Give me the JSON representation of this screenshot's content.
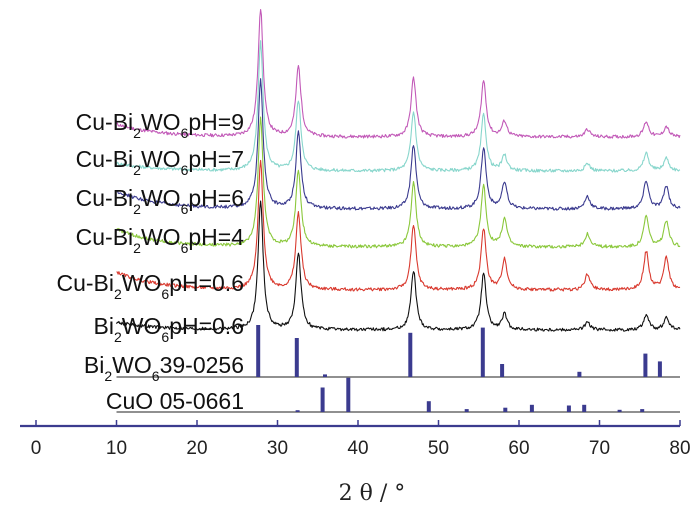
{
  "chart_data": {
    "type": "line",
    "xlabel": "2 θ / °",
    "ylabel": "",
    "xlim": [
      0,
      80
    ],
    "xticks": [
      0,
      10,
      20,
      30,
      40,
      50,
      60,
      70,
      80
    ],
    "axis_color": "#3b3b8f",
    "series": [
      {
        "label": {
          "a": "Cu-Bi",
          "sub1": "2",
          "b": "WO",
          "sub2": "6",
          "c": "pH=9"
        },
        "color": "#c25ab8",
        "peaks": [
          [
            27.9,
            1.0
          ],
          [
            32.6,
            0.55
          ],
          [
            46.9,
            0.46
          ],
          [
            55.6,
            0.44
          ],
          [
            58.2,
            0.12
          ],
          [
            68.5,
            0.06
          ],
          [
            75.8,
            0.12
          ],
          [
            78.3,
            0.08
          ]
        ]
      },
      {
        "label": {
          "a": "Cu-Bi",
          "sub1": "2",
          "b": "WO",
          "sub2": "6",
          "c": "pH=7"
        },
        "color": "#88d6cc",
        "peaks": [
          [
            27.9,
            1.0
          ],
          [
            32.6,
            0.55
          ],
          [
            46.9,
            0.46
          ],
          [
            55.6,
            0.44
          ],
          [
            58.2,
            0.12
          ],
          [
            68.5,
            0.06
          ],
          [
            75.8,
            0.14
          ],
          [
            78.3,
            0.1
          ]
        ]
      },
      {
        "label": {
          "a": "Cu-Bi",
          "sub1": "2",
          "b": "WO",
          "sub2": "6",
          "c": "pH=6"
        },
        "color": "#3b3b8f",
        "peaks": [
          [
            27.9,
            1.0
          ],
          [
            32.6,
            0.6
          ],
          [
            46.9,
            0.5
          ],
          [
            55.6,
            0.48
          ],
          [
            58.2,
            0.2
          ],
          [
            68.5,
            0.1
          ],
          [
            75.8,
            0.22
          ],
          [
            78.3,
            0.18
          ]
        ]
      },
      {
        "label": {
          "a": "Cu-Bi",
          "sub1": "2",
          "b": "WO",
          "sub2": "6",
          "c": "pH=4"
        },
        "color": "#8bc83c",
        "peaks": [
          [
            27.9,
            1.0
          ],
          [
            32.6,
            0.6
          ],
          [
            46.9,
            0.5
          ],
          [
            55.6,
            0.48
          ],
          [
            58.2,
            0.22
          ],
          [
            68.5,
            0.1
          ],
          [
            75.8,
            0.24
          ],
          [
            78.3,
            0.2
          ]
        ]
      },
      {
        "label": {
          "a": "Cu-Bi",
          "sub1": "2",
          "b": "WO",
          "sub2": "6",
          "c": "pH=0.6"
        },
        "color": "#d93a2f",
        "peaks": [
          [
            27.9,
            1.0
          ],
          [
            32.6,
            0.6
          ],
          [
            46.9,
            0.5
          ],
          [
            55.6,
            0.48
          ],
          [
            58.2,
            0.24
          ],
          [
            68.5,
            0.12
          ],
          [
            75.8,
            0.3
          ],
          [
            78.3,
            0.26
          ]
        ]
      },
      {
        "label": {
          "a": "Bi",
          "sub1": "2",
          "b": "WO",
          "sub2": "6",
          "c": "pH=0.6"
        },
        "color": "#111111",
        "peaks": [
          [
            27.9,
            1.0
          ],
          [
            32.6,
            0.6
          ],
          [
            46.9,
            0.46
          ],
          [
            55.6,
            0.44
          ],
          [
            58.2,
            0.12
          ],
          [
            68.5,
            0.06
          ],
          [
            75.8,
            0.12
          ],
          [
            78.3,
            0.1
          ]
        ]
      }
    ],
    "references": [
      {
        "label": {
          "a": "Bi",
          "sub1": "2",
          "b": "WO",
          "sub2": "6",
          "c": "39-0256"
        },
        "color": "#3b3b8f",
        "sticks": [
          [
            27.6,
            1.0
          ],
          [
            32.4,
            0.75
          ],
          [
            35.9,
            0.05
          ],
          [
            46.5,
            0.85
          ],
          [
            55.5,
            0.95
          ],
          [
            57.9,
            0.25
          ],
          [
            67.5,
            0.1
          ],
          [
            75.7,
            0.45
          ],
          [
            77.5,
            0.3
          ]
        ]
      },
      {
        "label": {
          "a": "CuO 05-0661",
          "sub1": "",
          "b": "",
          "sub2": "",
          "c": ""
        },
        "color": "#3b3b8f",
        "sticks": [
          [
            32.5,
            0.05
          ],
          [
            35.6,
            0.68
          ],
          [
            38.8,
            0.95
          ],
          [
            48.8,
            0.3
          ],
          [
            53.5,
            0.08
          ],
          [
            58.3,
            0.12
          ],
          [
            61.6,
            0.2
          ],
          [
            66.2,
            0.18
          ],
          [
            68.1,
            0.2
          ],
          [
            72.5,
            0.06
          ],
          [
            75.3,
            0.08
          ]
        ]
      }
    ]
  }
}
